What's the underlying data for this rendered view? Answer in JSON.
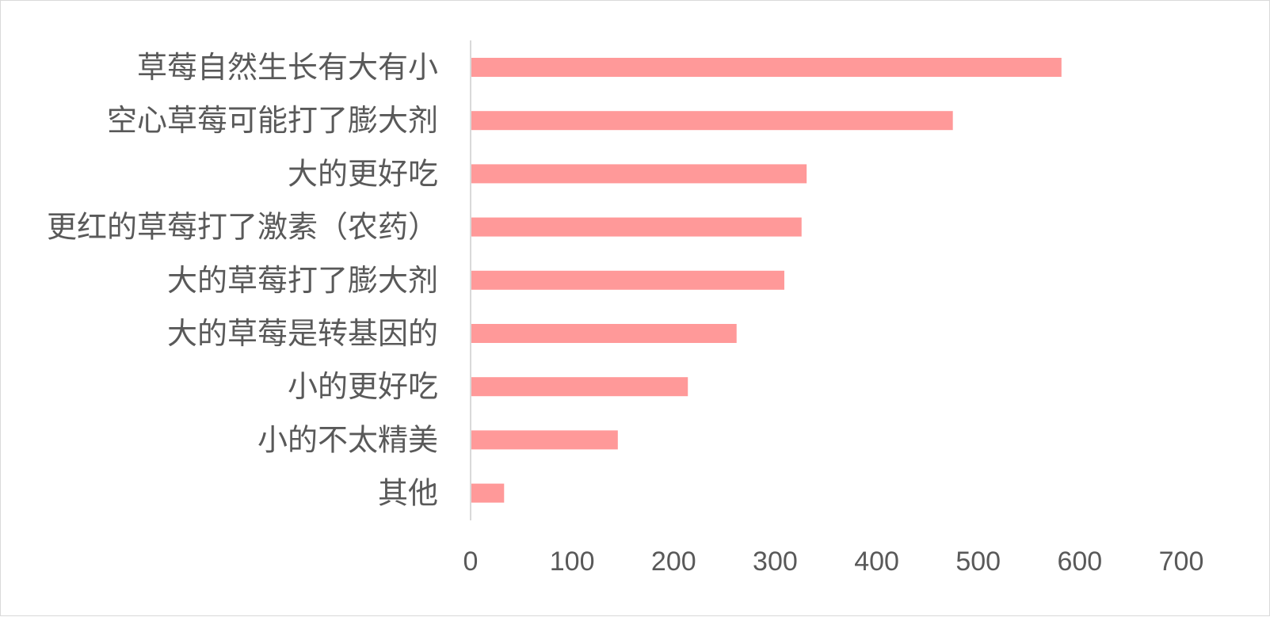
{
  "chart_data": {
    "type": "bar",
    "orientation": "horizontal",
    "categories": [
      "草莓自然生长有大有小",
      "空心草莓可能打了膨大剂",
      "大的更好吃",
      "更红的草莓打了激素（农药）",
      "大的草莓打了膨大剂",
      "大的草莓是转基因的",
      "小的更好吃",
      "小的不太精美",
      "其他"
    ],
    "values": [
      582,
      475,
      331,
      326,
      309,
      262,
      214,
      145,
      33
    ],
    "xlim": [
      0,
      700
    ],
    "x_ticks": [
      0,
      100,
      200,
      300,
      400,
      500,
      600,
      700
    ],
    "grid": false,
    "legend": "none",
    "bar_color": "#ff9999",
    "axis_color": "#d9d9d9",
    "text_color": "#595959"
  }
}
